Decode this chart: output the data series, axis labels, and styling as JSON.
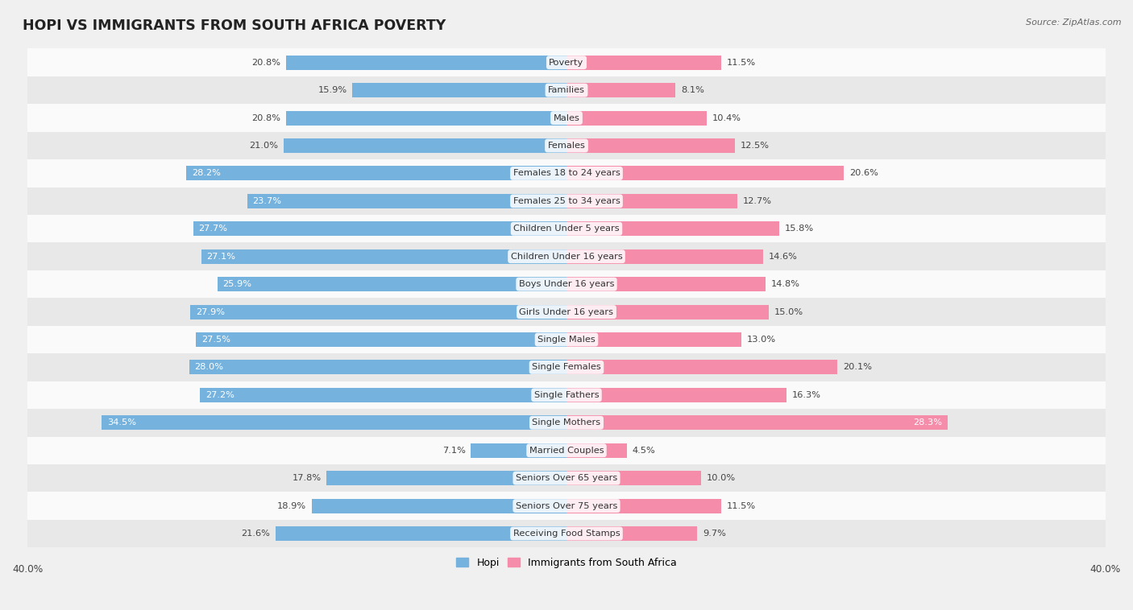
{
  "title": "HOPI VS IMMIGRANTS FROM SOUTH AFRICA POVERTY",
  "source": "Source: ZipAtlas.com",
  "categories": [
    "Poverty",
    "Families",
    "Males",
    "Females",
    "Females 18 to 24 years",
    "Females 25 to 34 years",
    "Children Under 5 years",
    "Children Under 16 years",
    "Boys Under 16 years",
    "Girls Under 16 years",
    "Single Males",
    "Single Females",
    "Single Fathers",
    "Single Mothers",
    "Married Couples",
    "Seniors Over 65 years",
    "Seniors Over 75 years",
    "Receiving Food Stamps"
  ],
  "hopi_values": [
    20.8,
    15.9,
    20.8,
    21.0,
    28.2,
    23.7,
    27.7,
    27.1,
    25.9,
    27.9,
    27.5,
    28.0,
    27.2,
    34.5,
    7.1,
    17.8,
    18.9,
    21.6
  ],
  "sa_values": [
    11.5,
    8.1,
    10.4,
    12.5,
    20.6,
    12.7,
    15.8,
    14.6,
    14.8,
    15.0,
    13.0,
    20.1,
    16.3,
    28.3,
    4.5,
    10.0,
    11.5,
    9.7
  ],
  "hopi_color": "#75b2dd",
  "sa_color": "#f48caa",
  "bg_color": "#f0f0f0",
  "row_color_light": "#fafafa",
  "row_color_dark": "#e8e8e8",
  "axis_max": 40.0,
  "label_fontsize": 8.2,
  "title_fontsize": 12.5,
  "legend_hopi": "Hopi",
  "legend_sa": "Immigrants from South Africa",
  "value_inside_color": "#ffffff",
  "value_outside_color": "#444444",
  "inside_threshold": 22.0
}
